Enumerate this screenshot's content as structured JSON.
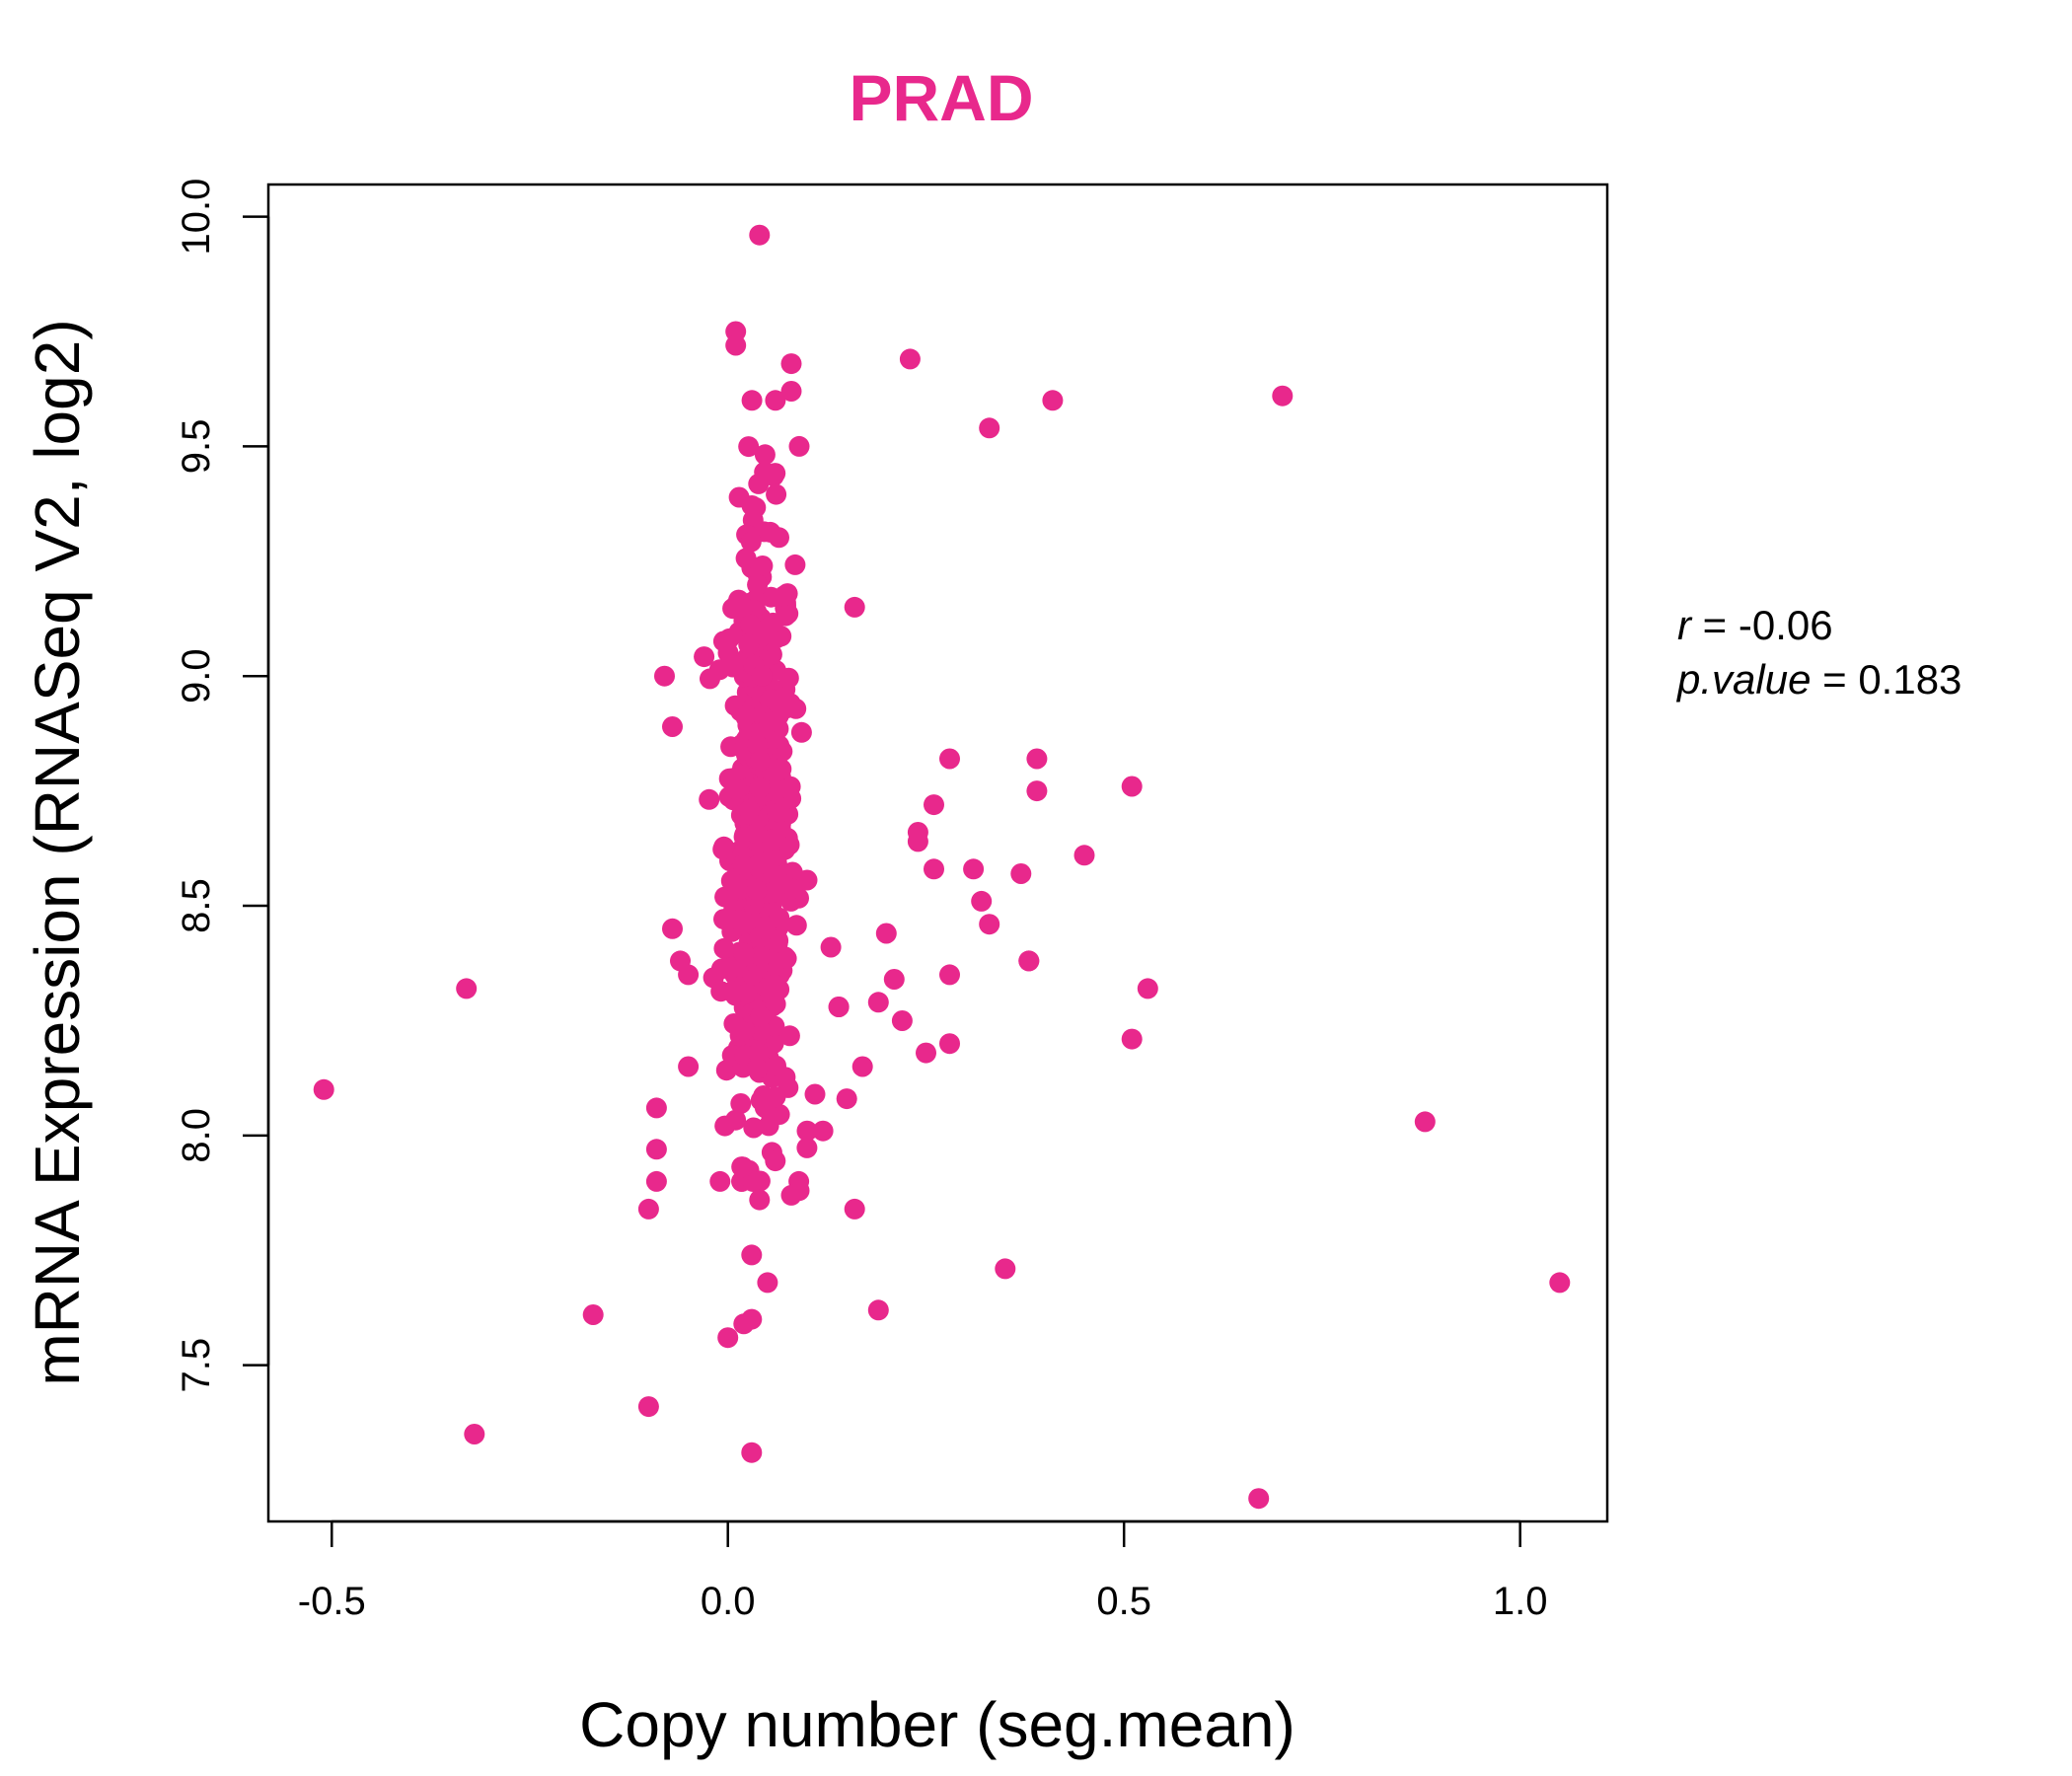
{
  "chart_data": {
    "type": "scatter",
    "title": "PRAD",
    "xlabel": "Copy number (seg.mean)",
    "ylabel": "mRNA Expression (RNASeq V2, log2)",
    "xlim": [
      -0.58,
      1.11
    ],
    "ylim": [
      7.16,
      10.07
    ],
    "xticks": [
      -0.5,
      0.0,
      0.5,
      1.0
    ],
    "xtick_labels": [
      "-0.5",
      "0.0",
      "0.5",
      "1.0"
    ],
    "yticks": [
      7.5,
      8.0,
      8.5,
      9.0,
      9.5,
      10.0
    ],
    "ytick_labels": [
      "7.5",
      "8.0",
      "8.5",
      "9.0",
      "9.5",
      "10.0"
    ],
    "grid": false,
    "point_color": "#E8288C",
    "title_color": "#E8288C",
    "stats": {
      "r_symbol": "r",
      "r_value": "-0.06",
      "p_symbol": "p.value",
      "p_value": "0.183"
    },
    "outliers": {
      "x": [
        -0.51,
        -0.33,
        -0.32,
        -0.17,
        -0.1,
        -0.1,
        -0.09,
        -0.09,
        -0.08,
        -0.09,
        -0.07,
        -0.07,
        -0.06,
        -0.05,
        -0.05,
        0.04,
        0.01,
        0.01,
        0.08,
        0.08,
        0.09,
        0.06,
        0.23,
        0.33,
        0.41,
        0.7,
        0.67,
        0.88,
        1.05,
        0.35,
        0.19,
        0.16,
        0.51,
        0.51,
        0.53,
        0.45,
        0.39,
        0.39,
        0.38,
        0.28,
        0.28,
        0.28,
        0.26,
        0.26,
        0.24,
        0.24,
        0.25,
        0.22,
        0.21,
        0.2,
        0.19,
        0.17,
        0.15,
        0.14,
        0.13,
        0.12,
        0.03,
        0.05,
        0.03,
        0.03,
        0.04,
        0.02,
        0.0,
        0.09,
        0.08,
        0.1,
        0.11,
        0.14,
        0.16,
        0.31,
        0.32,
        0.33,
        0.37,
        0.38
      ],
      "y": [
        8.1,
        8.32,
        7.35,
        7.61,
        7.41,
        7.84,
        7.9,
        8.06,
        9.0,
        7.97,
        8.89,
        8.45,
        8.38,
        8.15,
        8.35,
        9.96,
        9.75,
        9.72,
        9.68,
        9.62,
        9.5,
        9.6,
        9.69,
        9.54,
        9.6,
        9.61,
        7.21,
        8.03,
        7.68,
        7.71,
        7.62,
        7.84,
        8.76,
        8.21,
        8.32,
        8.61,
        8.82,
        8.75,
        8.38,
        8.82,
        8.35,
        8.2,
        8.72,
        8.58,
        8.66,
        8.64,
        8.18,
        8.25,
        8.34,
        8.44,
        8.29,
        8.15,
        8.08,
        8.28,
        8.41,
        8.01,
        7.74,
        7.68,
        7.6,
        7.31,
        7.86,
        7.59,
        7.56,
        7.88,
        7.87,
        8.01,
        8.09,
        8.28,
        9.15,
        8.58,
        8.51,
        8.46,
        8.57,
        8.38
      ]
    },
    "core_cloud": {
      "description": "dense cluster of about 500 samples",
      "x_range": [
        -0.03,
        0.1
      ],
      "y_range": [
        7.9,
        9.6
      ],
      "x_center": 0.04,
      "y_center": 8.65,
      "n_points": 480
    }
  }
}
